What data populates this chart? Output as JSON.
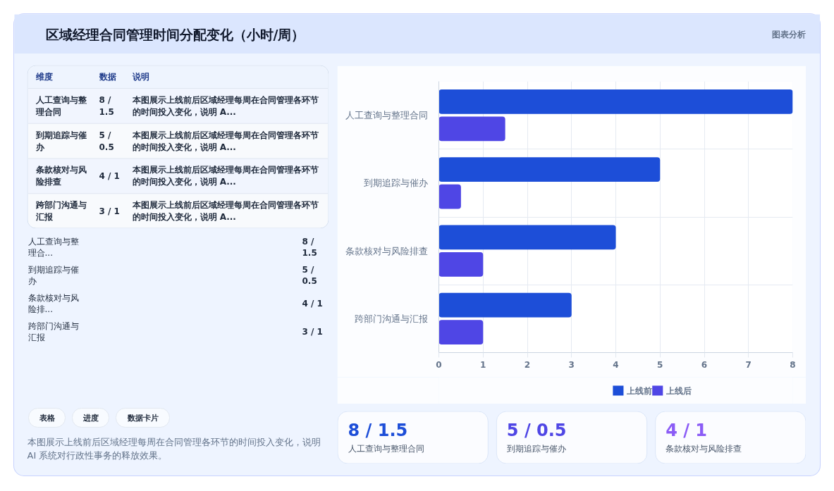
{
  "chart_data": [
    {
      "type": "other",
      "title": "区域经理合同管理时间分配变化（小时/周）",
      "annotations": [
        "图表分析"
      ]
    },
    {
      "type": "other",
      "categories": [
        "维度",
        "数据",
        "说明"
      ],
      "annotations": [
        "人工查询与整理合同",
        "8 / 1.5",
        "本图展示上线前后区域经理每周在合同管理各环节的时间投入变化，说明 A...",
        "到期追踪与催办",
        "5 / 0.5",
        "本图展示上线前后区域经理每周在合同管理各环节的时间投入变化，说明 A...",
        "条款核对与风险排查",
        "4 / 1",
        "本图展示上线前后区域经理每周在合同管理各环节的时间投入变化，说明 A...",
        "跨部门沟通与汇报",
        "3 / 1",
        "本图展示上线前后区域经理每周在合同管理各环节的时间投入变化，说明 A..."
      ]
    },
    {
      "type": "other",
      "annotations": [
        "人工查询与整理合...",
        "8 / 1.5",
        "到期追踪与催办",
        "5 / 0.5",
        "条款核对与风险排...",
        "4 / 1",
        "跨部门沟通与汇报",
        "3 / 1"
      ]
    },
    {
      "type": "other",
      "categories": [
        "表格",
        "进度",
        "数据卡片"
      ],
      "annotations": [
        "本图展示上线前后区域经理每周在合同管理各环节的时间投入变化，说明 AI 系统对行政性事务的释放效果。"
      ]
    },
    {
      "type": "bar",
      "orientation": "horizontal",
      "categories": [
        "人工查询与整理合同",
        "到期追踪与催办",
        "条款核对与风险排查",
        "跨部门沟通与汇报"
      ],
      "series": [
        {
          "name": "上线前",
          "color": "#1d4ed8",
          "values": [
            8,
            5,
            4,
            3
          ]
        },
        {
          "name": "上线后",
          "color": "#4f46e5",
          "values": [
            1.5,
            0.5,
            1,
            1
          ]
        }
      ],
      "xlim": [
        0,
        8
      ],
      "xticks": [
        0,
        1,
        2,
        3,
        4,
        5,
        6,
        7,
        8
      ],
      "grid": true,
      "legend": "bottom"
    },
    {
      "type": "other",
      "annotations": [
        "8 / 1.5",
        "人工查询与整理合同",
        "5 / 0.5",
        "到期追踪与催办",
        "4 / 1",
        "条款核对与风险排查"
      ],
      "colors": [
        "#1d4ed8",
        "#4f46e5",
        "#8b5cf6"
      ]
    }
  ]
}
